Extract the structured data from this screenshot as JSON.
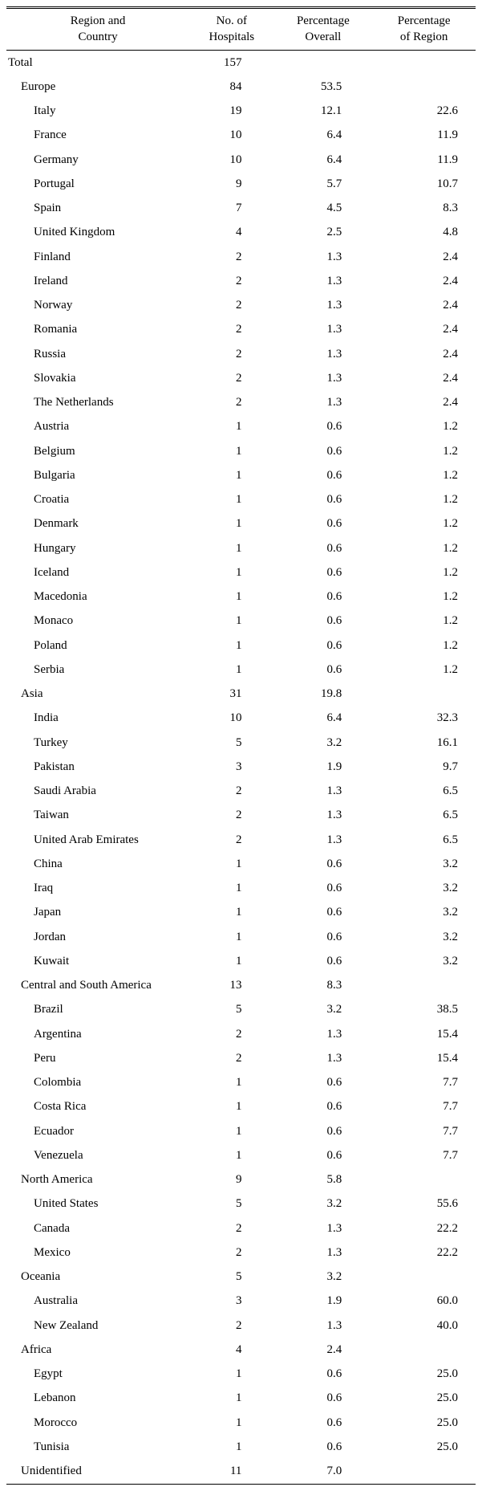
{
  "table": {
    "type": "table",
    "background_color": "#ffffff",
    "text_color": "#000000",
    "border_color": "#000000",
    "font_family": "Times New Roman",
    "header_fontsize": 15,
    "body_fontsize": 15,
    "columns": [
      {
        "key": "label",
        "header_line1": "Region and",
        "header_line2": "Country",
        "align_body": "left"
      },
      {
        "key": "hospitals",
        "header_line1": "No. of",
        "header_line2": "Hospitals",
        "align_body": "right"
      },
      {
        "key": "overall",
        "header_line1": "Percentage",
        "header_line2": "Overall",
        "align_body": "right"
      },
      {
        "key": "region",
        "header_line1": "Percentage",
        "header_line2": "of Region",
        "align_body": "right"
      }
    ],
    "rows": [
      {
        "indent": 0,
        "label": "Total",
        "hospitals": "157",
        "overall": "",
        "region": ""
      },
      {
        "indent": 1,
        "label": "Europe",
        "hospitals": "84",
        "overall": "53.5",
        "region": ""
      },
      {
        "indent": 2,
        "label": "Italy",
        "hospitals": "19",
        "overall": "12.1",
        "region": "22.6"
      },
      {
        "indent": 2,
        "label": "France",
        "hospitals": "10",
        "overall": "6.4",
        "region": "11.9"
      },
      {
        "indent": 2,
        "label": "Germany",
        "hospitals": "10",
        "overall": "6.4",
        "region": "11.9"
      },
      {
        "indent": 2,
        "label": "Portugal",
        "hospitals": "9",
        "overall": "5.7",
        "region": "10.7"
      },
      {
        "indent": 2,
        "label": "Spain",
        "hospitals": "7",
        "overall": "4.5",
        "region": "8.3"
      },
      {
        "indent": 2,
        "label": "United Kingdom",
        "hospitals": "4",
        "overall": "2.5",
        "region": "4.8"
      },
      {
        "indent": 2,
        "label": "Finland",
        "hospitals": "2",
        "overall": "1.3",
        "region": "2.4"
      },
      {
        "indent": 2,
        "label": "Ireland",
        "hospitals": "2",
        "overall": "1.3",
        "region": "2.4"
      },
      {
        "indent": 2,
        "label": "Norway",
        "hospitals": "2",
        "overall": "1.3",
        "region": "2.4"
      },
      {
        "indent": 2,
        "label": "Romania",
        "hospitals": "2",
        "overall": "1.3",
        "region": "2.4"
      },
      {
        "indent": 2,
        "label": "Russia",
        "hospitals": "2",
        "overall": "1.3",
        "region": "2.4"
      },
      {
        "indent": 2,
        "label": "Slovakia",
        "hospitals": "2",
        "overall": "1.3",
        "region": "2.4"
      },
      {
        "indent": 2,
        "label": "The Netherlands",
        "hospitals": "2",
        "overall": "1.3",
        "region": "2.4"
      },
      {
        "indent": 2,
        "label": "Austria",
        "hospitals": "1",
        "overall": "0.6",
        "region": "1.2"
      },
      {
        "indent": 2,
        "label": "Belgium",
        "hospitals": "1",
        "overall": "0.6",
        "region": "1.2"
      },
      {
        "indent": 2,
        "label": "Bulgaria",
        "hospitals": "1",
        "overall": "0.6",
        "region": "1.2"
      },
      {
        "indent": 2,
        "label": "Croatia",
        "hospitals": "1",
        "overall": "0.6",
        "region": "1.2"
      },
      {
        "indent": 2,
        "label": "Denmark",
        "hospitals": "1",
        "overall": "0.6",
        "region": "1.2"
      },
      {
        "indent": 2,
        "label": "Hungary",
        "hospitals": "1",
        "overall": "0.6",
        "region": "1.2"
      },
      {
        "indent": 2,
        "label": "Iceland",
        "hospitals": "1",
        "overall": "0.6",
        "region": "1.2"
      },
      {
        "indent": 2,
        "label": "Macedonia",
        "hospitals": "1",
        "overall": "0.6",
        "region": "1.2"
      },
      {
        "indent": 2,
        "label": "Monaco",
        "hospitals": "1",
        "overall": "0.6",
        "region": "1.2"
      },
      {
        "indent": 2,
        "label": "Poland",
        "hospitals": "1",
        "overall": "0.6",
        "region": "1.2"
      },
      {
        "indent": 2,
        "label": "Serbia",
        "hospitals": "1",
        "overall": "0.6",
        "region": "1.2"
      },
      {
        "indent": 1,
        "label": "Asia",
        "hospitals": "31",
        "overall": "19.8",
        "region": ""
      },
      {
        "indent": 2,
        "label": "India",
        "hospitals": "10",
        "overall": "6.4",
        "region": "32.3"
      },
      {
        "indent": 2,
        "label": "Turkey",
        "hospitals": "5",
        "overall": "3.2",
        "region": "16.1"
      },
      {
        "indent": 2,
        "label": "Pakistan",
        "hospitals": "3",
        "overall": "1.9",
        "region": "9.7"
      },
      {
        "indent": 2,
        "label": "Saudi Arabia",
        "hospitals": "2",
        "overall": "1.3",
        "region": "6.5"
      },
      {
        "indent": 2,
        "label": "Taiwan",
        "hospitals": "2",
        "overall": "1.3",
        "region": "6.5"
      },
      {
        "indent": 2,
        "label": "United Arab Emirates",
        "hospitals": "2",
        "overall": "1.3",
        "region": "6.5"
      },
      {
        "indent": 2,
        "label": "China",
        "hospitals": "1",
        "overall": "0.6",
        "region": "3.2"
      },
      {
        "indent": 2,
        "label": "Iraq",
        "hospitals": "1",
        "overall": "0.6",
        "region": "3.2"
      },
      {
        "indent": 2,
        "label": "Japan",
        "hospitals": "1",
        "overall": "0.6",
        "region": "3.2"
      },
      {
        "indent": 2,
        "label": "Jordan",
        "hospitals": "1",
        "overall": "0.6",
        "region": "3.2"
      },
      {
        "indent": 2,
        "label": "Kuwait",
        "hospitals": "1",
        "overall": "0.6",
        "region": "3.2"
      },
      {
        "indent": 1,
        "label": "Central and South America",
        "hospitals": "13",
        "overall": "8.3",
        "region": ""
      },
      {
        "indent": 2,
        "label": "Brazil",
        "hospitals": "5",
        "overall": "3.2",
        "region": "38.5"
      },
      {
        "indent": 2,
        "label": "Argentina",
        "hospitals": "2",
        "overall": "1.3",
        "region": "15.4"
      },
      {
        "indent": 2,
        "label": "Peru",
        "hospitals": "2",
        "overall": "1.3",
        "region": "15.4"
      },
      {
        "indent": 2,
        "label": "Colombia",
        "hospitals": "1",
        "overall": "0.6",
        "region": "7.7"
      },
      {
        "indent": 2,
        "label": "Costa Rica",
        "hospitals": "1",
        "overall": "0.6",
        "region": "7.7"
      },
      {
        "indent": 2,
        "label": "Ecuador",
        "hospitals": "1",
        "overall": "0.6",
        "region": "7.7"
      },
      {
        "indent": 2,
        "label": "Venezuela",
        "hospitals": "1",
        "overall": "0.6",
        "region": "7.7"
      },
      {
        "indent": 1,
        "label": "North America",
        "hospitals": "9",
        "overall": "5.8",
        "region": ""
      },
      {
        "indent": 2,
        "label": "United States",
        "hospitals": "5",
        "overall": "3.2",
        "region": "55.6"
      },
      {
        "indent": 2,
        "label": "Canada",
        "hospitals": "2",
        "overall": "1.3",
        "region": "22.2"
      },
      {
        "indent": 2,
        "label": "Mexico",
        "hospitals": "2",
        "overall": "1.3",
        "region": "22.2"
      },
      {
        "indent": 1,
        "label": "Oceania",
        "hospitals": "5",
        "overall": "3.2",
        "region": ""
      },
      {
        "indent": 2,
        "label": "Australia",
        "hospitals": "3",
        "overall": "1.9",
        "region": "60.0"
      },
      {
        "indent": 2,
        "label": "New Zealand",
        "hospitals": "2",
        "overall": "1.3",
        "region": "40.0"
      },
      {
        "indent": 1,
        "label": "Africa",
        "hospitals": "4",
        "overall": "2.4",
        "region": ""
      },
      {
        "indent": 2,
        "label": "Egypt",
        "hospitals": "1",
        "overall": "0.6",
        "region": "25.0"
      },
      {
        "indent": 2,
        "label": "Lebanon",
        "hospitals": "1",
        "overall": "0.6",
        "region": "25.0"
      },
      {
        "indent": 2,
        "label": "Morocco",
        "hospitals": "1",
        "overall": "0.6",
        "region": "25.0"
      },
      {
        "indent": 2,
        "label": "Tunisia",
        "hospitals": "1",
        "overall": "0.6",
        "region": "25.0"
      },
      {
        "indent": 1,
        "label": "Unidentified",
        "hospitals": "11",
        "overall": "7.0",
        "region": ""
      }
    ]
  }
}
